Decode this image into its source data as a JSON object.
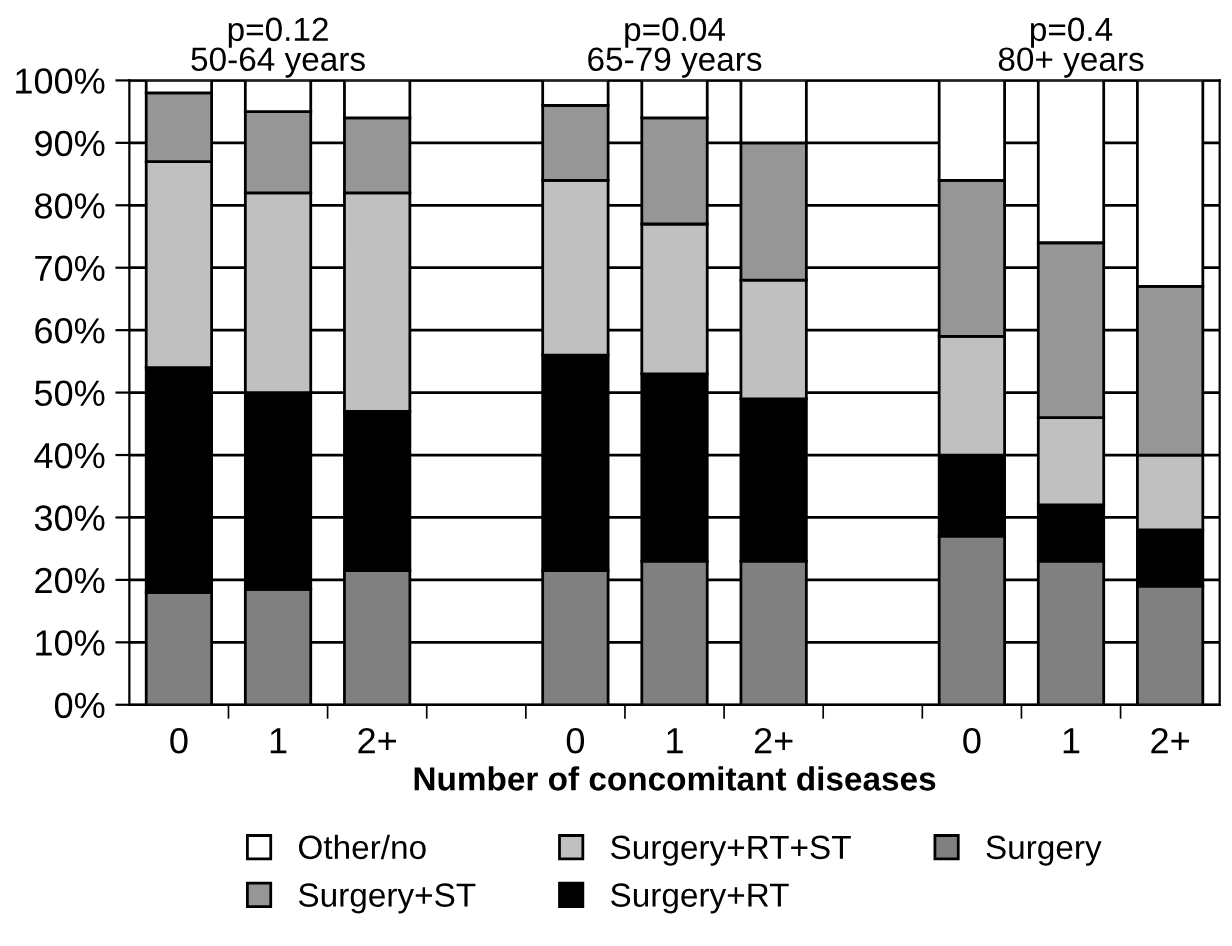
{
  "chart_data": {
    "type": "bar",
    "stacked": true,
    "xlabel": "Number of concomitant diseases",
    "categories": [
      "0",
      "1",
      "2+",
      null,
      "0",
      "1",
      "2+",
      null,
      "0",
      "1",
      "2+"
    ],
    "series": [
      {
        "name": "Surgery",
        "color": "#808080",
        "values": [
          18,
          18.5,
          21.5,
          null,
          21.5,
          23,
          23,
          null,
          27,
          23,
          19
        ]
      },
      {
        "name": "Surgery+RT",
        "color": "#000000",
        "values": [
          36,
          31.5,
          25.5,
          null,
          34.5,
          30,
          26,
          null,
          13,
          9,
          9
        ]
      },
      {
        "name": "Surgery+RT+ST",
        "color": "#c0c0c0",
        "values": [
          33,
          32,
          35,
          null,
          28,
          24,
          19,
          null,
          19,
          14,
          12
        ]
      },
      {
        "name": "Surgery+ST",
        "color": "#969696",
        "values": [
          11,
          13,
          12,
          null,
          12,
          17,
          22,
          null,
          25,
          28,
          27
        ]
      },
      {
        "name": "Other/no",
        "color": "#ffffff",
        "values": [
          2,
          5,
          6,
          null,
          4,
          6,
          10,
          null,
          16,
          26,
          33
        ]
      }
    ],
    "ylim": [
      0,
      100
    ],
    "yticks": [
      {
        "value": 0,
        "label": "0%"
      },
      {
        "value": 10,
        "label": "10%"
      },
      {
        "value": 20,
        "label": "20%"
      },
      {
        "value": 30,
        "label": "30%"
      },
      {
        "value": 40,
        "label": "40%"
      },
      {
        "value": 50,
        "label": "50%"
      },
      {
        "value": 60,
        "label": "60%"
      },
      {
        "value": 70,
        "label": "70%"
      },
      {
        "value": 80,
        "label": "80%"
      },
      {
        "value": 90,
        "label": "90%"
      },
      {
        "value": 100,
        "label": "100%"
      }
    ],
    "annotations": [
      "p=0.12\n50-64 years",
      "p=0.04\n65-79 years",
      "p=0.4\n80+ years"
    ],
    "grid": "y",
    "legend": "bottom"
  }
}
